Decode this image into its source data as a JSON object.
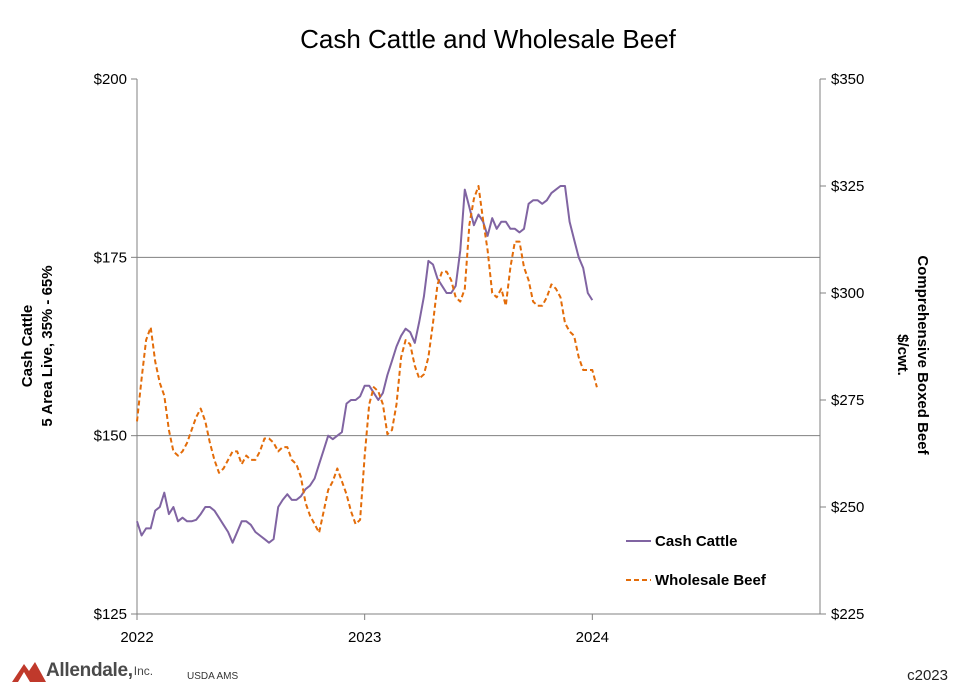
{
  "chart_data": {
    "type": "line",
    "title": "Cash Cattle and Wholesale Beef",
    "ylabel_left": [
      "Cash Cattle",
      "5 Area Live, 35% - 65%"
    ],
    "ylabel_right": [
      "Comprehensive Boxed Beef",
      "$/cwt."
    ],
    "xlim": [
      2022,
      2025
    ],
    "x_ticks": [
      2022,
      2023,
      2024
    ],
    "x_tick_labels": [
      "2022",
      "2023",
      "2024"
    ],
    "ylim_left": [
      125,
      200
    ],
    "y_ticks_left": [
      125,
      150,
      175,
      200
    ],
    "y_tick_labels_left": [
      "$125",
      "$150",
      "$175",
      "$200"
    ],
    "ylim_right": [
      225,
      350
    ],
    "y_ticks_right": [
      225,
      250,
      275,
      300,
      325,
      350
    ],
    "y_tick_labels_right": [
      "$225",
      "$250",
      "$275",
      "$300",
      "$325",
      "$350"
    ],
    "grid": "horizontal at $150 and $175",
    "legend_position": "bottom-right inside plot",
    "series": [
      {
        "name": "Cash Cattle",
        "axis": "left",
        "color": "#8064a2",
        "style": "solid",
        "x": [
          2022.0,
          2022.02,
          2022.04,
          2022.06,
          2022.08,
          2022.1,
          2022.12,
          2022.14,
          2022.16,
          2022.18,
          2022.2,
          2022.22,
          2022.24,
          2022.26,
          2022.28,
          2022.3,
          2022.32,
          2022.34,
          2022.36,
          2022.38,
          2022.4,
          2022.42,
          2022.44,
          2022.46,
          2022.48,
          2022.5,
          2022.52,
          2022.54,
          2022.56,
          2022.58,
          2022.6,
          2022.62,
          2022.64,
          2022.66,
          2022.68,
          2022.7,
          2022.72,
          2022.74,
          2022.76,
          2022.78,
          2022.8,
          2022.82,
          2022.84,
          2022.86,
          2022.88,
          2022.9,
          2022.92,
          2022.94,
          2022.96,
          2022.98,
          2023.0,
          2023.02,
          2023.04,
          2023.06,
          2023.08,
          2023.1,
          2023.12,
          2023.14,
          2023.16,
          2023.18,
          2023.2,
          2023.22,
          2023.24,
          2023.26,
          2023.28,
          2023.3,
          2023.32,
          2023.34,
          2023.36,
          2023.38,
          2023.4,
          2023.42,
          2023.44,
          2023.46,
          2023.48,
          2023.5,
          2023.52,
          2023.54,
          2023.56,
          2023.58,
          2023.6,
          2023.62,
          2023.64,
          2023.66,
          2023.68,
          2023.7,
          2023.72,
          2023.74,
          2023.76,
          2023.78,
          2023.8,
          2023.82,
          2023.84,
          2023.86,
          2023.88,
          2023.9,
          2023.92,
          2023.94,
          2023.96,
          2023.98,
          2024.0
        ],
        "values": [
          138.0,
          136.0,
          137.0,
          137.0,
          139.5,
          140.0,
          142.0,
          139.0,
          140.0,
          138.0,
          138.5,
          138.0,
          138.0,
          138.2,
          139.0,
          140.0,
          140.0,
          139.5,
          138.5,
          137.5,
          136.5,
          135.0,
          136.5,
          138.0,
          138.0,
          137.5,
          136.5,
          136.0,
          135.5,
          135.0,
          135.5,
          140.0,
          141.0,
          141.8,
          141.0,
          141.0,
          141.5,
          142.5,
          143.0,
          144.0,
          146.0,
          148.0,
          150.0,
          149.5,
          150.0,
          150.5,
          154.5,
          155.0,
          155.0,
          155.5,
          157.0,
          157.0,
          156.0,
          155.0,
          156.0,
          158.5,
          160.5,
          162.5,
          164.0,
          165.0,
          164.5,
          163.0,
          166.0,
          169.5,
          174.5,
          174.0,
          172.0,
          171.0,
          170.0,
          170.0,
          171.0,
          176.0,
          184.5,
          182.0,
          179.5,
          181.0,
          180.0,
          178.0,
          180.5,
          179.0,
          180.0,
          180.0,
          179.0,
          179.0,
          178.5,
          179.0,
          182.5,
          183.0,
          183.0,
          182.5,
          183.0,
          184.0,
          184.5,
          185.0,
          185.0,
          180.0,
          177.5,
          175.0,
          173.5,
          170.0,
          169.0
        ]
      },
      {
        "name": "Wholesale Beef",
        "axis": "right",
        "color": "#e36c09",
        "style": "dashed",
        "x": [
          2022.0,
          2022.02,
          2022.04,
          2022.06,
          2022.08,
          2022.1,
          2022.12,
          2022.14,
          2022.16,
          2022.18,
          2022.2,
          2022.22,
          2022.24,
          2022.26,
          2022.28,
          2022.3,
          2022.32,
          2022.34,
          2022.36,
          2022.38,
          2022.4,
          2022.42,
          2022.44,
          2022.46,
          2022.48,
          2022.5,
          2022.52,
          2022.54,
          2022.56,
          2022.58,
          2022.6,
          2022.62,
          2022.64,
          2022.66,
          2022.68,
          2022.7,
          2022.72,
          2022.74,
          2022.76,
          2022.78,
          2022.8,
          2022.82,
          2022.84,
          2022.86,
          2022.88,
          2022.9,
          2022.92,
          2022.94,
          2022.96,
          2022.98,
          2023.0,
          2023.02,
          2023.04,
          2023.06,
          2023.08,
          2023.1,
          2023.12,
          2023.14,
          2023.16,
          2023.18,
          2023.2,
          2023.22,
          2023.24,
          2023.26,
          2023.28,
          2023.3,
          2023.32,
          2023.34,
          2023.36,
          2023.38,
          2023.4,
          2023.42,
          2023.44,
          2023.46,
          2023.48,
          2023.5,
          2023.52,
          2023.54,
          2023.56,
          2023.58,
          2023.6,
          2023.62,
          2023.64,
          2023.66,
          2023.68,
          2023.7,
          2023.72,
          2023.74,
          2023.76,
          2023.78,
          2023.8,
          2023.82,
          2023.84,
          2023.86,
          2023.88,
          2023.9,
          2023.92,
          2023.94,
          2023.96,
          2023.98,
          2024.0,
          2024.02
        ],
        "values": [
          270.0,
          280.0,
          289.0,
          292.0,
          284.0,
          279.0,
          276.0,
          268.0,
          263.0,
          262.0,
          263.0,
          265.0,
          268.0,
          271.0,
          273.0,
          270.0,
          265.0,
          261.0,
          258.0,
          259.0,
          261.0,
          263.0,
          263.0,
          260.0,
          262.0,
          261.0,
          261.0,
          263.0,
          266.0,
          266.0,
          265.0,
          263.0,
          264.0,
          264.0,
          261.0,
          260.0,
          257.0,
          251.0,
          248.0,
          246.0,
          244.0,
          249.0,
          254.0,
          256.0,
          259.0,
          256.0,
          253.0,
          249.0,
          246.0,
          247.0,
          262.0,
          274.0,
          278.0,
          277.0,
          274.0,
          267.0,
          268.0,
          274.0,
          285.0,
          289.0,
          288.0,
          283.0,
          280.0,
          281.0,
          285.0,
          293.0,
          302.0,
          305.0,
          305.0,
          303.0,
          299.0,
          298.0,
          301.0,
          316.0,
          322.0,
          325.0,
          317.0,
          310.0,
          300.0,
          299.0,
          301.0,
          297.0,
          306.0,
          312.0,
          312.0,
          306.0,
          303.0,
          298.0,
          297.0,
          297.0,
          299.0,
          302.0,
          301.0,
          299.0,
          293.0,
          291.0,
          290.0,
          285.0,
          282.0,
          282.0,
          282.0,
          278.0
        ]
      }
    ]
  },
  "footer": {
    "logo_text": "Allendale,",
    "logo_suffix": "Inc.",
    "source": "USDA AMS",
    "copyright": "c2023"
  },
  "colors": {
    "cattle": "#8064a2",
    "beef": "#e36c09",
    "grid": "#808080",
    "logo_red": "#c0392b"
  }
}
